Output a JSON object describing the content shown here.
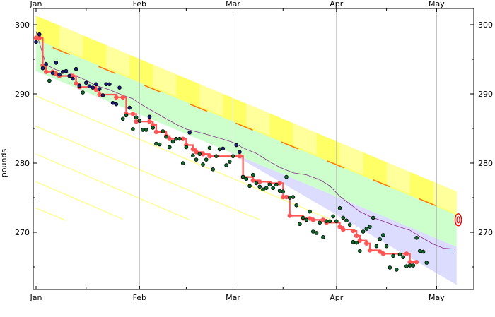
{
  "chart_data": {
    "type": "scatter",
    "ylabel": "pounds",
    "x_ticks": [
      {
        "label": "Jan",
        "day": 0
      },
      {
        "label": "Feb",
        "day": 31
      },
      {
        "label": "Mar",
        "day": 59
      },
      {
        "label": "Apr",
        "day": 90
      },
      {
        "label": "May",
        "day": 120
      }
    ],
    "x_minor_days": [
      15,
      45,
      74,
      105
    ],
    "y_ticks": [
      270,
      280,
      290,
      300
    ],
    "xlim_days": [
      -1,
      127
    ],
    "ylim": [
      262,
      302
    ],
    "grid": "vertical month lines",
    "goal": {
      "day": 126.5,
      "value": 271.8
    },
    "road": {
      "upper": [
        [
          0,
          301.3
        ],
        [
          126,
          275.9
        ]
      ],
      "lower": [
        [
          0,
          293.3
        ],
        [
          126,
          267.9
        ]
      ],
      "centerline": [
        [
          5,
          296.7
        ],
        [
          125,
          272.8
        ]
      ]
    },
    "safe_zone": [
      [
        0,
        297.9
      ],
      [
        126,
        262.4
      ]
    ],
    "guide_lines": [
      {
        "from": [
          0,
          289.7
        ],
        "to": [
          88,
          271.9
        ]
      },
      {
        "from": [
          0,
          285.3
        ],
        "to": [
          67,
          271.8
        ]
      },
      {
        "from": [
          0,
          281.3
        ],
        "to": [
          46,
          271.8
        ]
      },
      {
        "from": [
          0,
          277.3
        ],
        "to": [
          26,
          271.9
        ]
      },
      {
        "from": [
          0,
          273.5
        ],
        "to": [
          9,
          271.7
        ]
      }
    ],
    "moving_average": [
      [
        0,
        299
      ],
      [
        3,
        294.2
      ],
      [
        6,
        293.5
      ],
      [
        10,
        293
      ],
      [
        14,
        292.2
      ],
      [
        18,
        291.2
      ],
      [
        22,
        290.6
      ],
      [
        26,
        289.8
      ],
      [
        29,
        289.3
      ],
      [
        31,
        288.6
      ],
      [
        35,
        287.5
      ],
      [
        39,
        286.4
      ],
      [
        42,
        285.6
      ],
      [
        45,
        284.9
      ],
      [
        50,
        284.3
      ],
      [
        55,
        283.6
      ],
      [
        59,
        283
      ],
      [
        62,
        282.2
      ],
      [
        66,
        281.4
      ],
      [
        70,
        280.2
      ],
      [
        73,
        279.4
      ],
      [
        77,
        278.6
      ],
      [
        81,
        278.3
      ],
      [
        85,
        277.6
      ],
      [
        88,
        276.7
      ],
      [
        91,
        275.2
      ],
      [
        94,
        274.1
      ],
      [
        97,
        273
      ],
      [
        100,
        272.3
      ],
      [
        104,
        271.6
      ],
      [
        108,
        270.9
      ],
      [
        112,
        270.3
      ],
      [
        115,
        269.4
      ],
      [
        119,
        268.3
      ],
      [
        122,
        267.7
      ],
      [
        125,
        267.6
      ]
    ],
    "steps": [
      [
        0,
        298.1
      ],
      [
        1,
        298.1
      ],
      [
        2,
        294.1
      ],
      [
        3,
        293.2
      ],
      [
        5,
        293.2
      ],
      [
        6,
        292.9
      ],
      [
        7,
        292.6
      ],
      [
        11,
        292.6
      ],
      [
        12,
        291.5
      ],
      [
        13,
        291
      ],
      [
        18,
        290.6
      ],
      [
        19,
        289.9
      ],
      [
        24,
        289.5
      ],
      [
        26,
        289.5
      ],
      [
        27,
        287.1
      ],
      [
        29,
        287.1
      ],
      [
        30,
        286
      ],
      [
        34,
        286
      ],
      [
        35,
        285.5
      ],
      [
        36,
        284.5
      ],
      [
        39,
        283.9
      ],
      [
        40,
        283.5
      ],
      [
        44,
        283.5
      ],
      [
        45,
        282.6
      ],
      [
        47,
        282
      ],
      [
        48,
        281.6
      ],
      [
        50,
        281.3
      ],
      [
        52,
        281
      ],
      [
        61,
        281
      ],
      [
        62,
        278
      ],
      [
        65,
        277.5
      ],
      [
        67,
        277.3
      ],
      [
        70,
        277.1
      ],
      [
        73,
        277.1
      ],
      [
        74,
        275.1
      ],
      [
        75,
        275.1
      ],
      [
        76,
        272.4
      ],
      [
        80,
        272
      ],
      [
        82,
        272
      ],
      [
        83,
        271.8
      ],
      [
        86,
        271.8
      ],
      [
        87,
        271.4
      ],
      [
        91,
        270.8
      ],
      [
        92,
        270.4
      ],
      [
        95,
        270.2
      ],
      [
        96,
        269.5
      ],
      [
        97,
        268.8
      ],
      [
        99,
        268.4
      ],
      [
        100,
        267.4
      ],
      [
        103,
        267.2
      ],
      [
        104,
        266.9
      ],
      [
        111,
        266.9
      ],
      [
        112,
        265.7
      ],
      [
        114,
        265.7
      ]
    ],
    "points": [
      [
        0,
        297.5
      ],
      [
        1,
        298.6
      ],
      [
        2,
        293.7
      ],
      [
        3,
        294.3
      ],
      [
        4,
        291.9
      ],
      [
        5,
        293
      ],
      [
        6,
        294.5
      ],
      [
        7,
        292.8
      ],
      [
        8,
        293.2
      ],
      [
        9,
        293.3
      ],
      [
        10,
        292.6
      ],
      [
        11,
        292.2
      ],
      [
        12,
        293.6
      ],
      [
        13,
        291.2
      ],
      [
        14,
        290.2
      ],
      [
        15,
        291.6
      ],
      [
        16,
        291.1
      ],
      [
        17,
        290.9
      ],
      [
        18,
        291.4
      ],
      [
        19,
        290.7
      ],
      [
        20,
        289.8
      ],
      [
        21,
        291.4
      ],
      [
        22,
        291.4
      ],
      [
        23,
        288.7
      ],
      [
        24,
        288.5
      ],
      [
        25,
        290.9
      ],
      [
        26,
        286.4
      ],
      [
        27,
        286.9
      ],
      [
        28,
        288
      ],
      [
        29,
        284.9
      ],
      [
        30,
        286.6
      ],
      [
        31,
        286.1
      ],
      [
        32,
        284.8
      ],
      [
        33,
        284.8
      ],
      [
        34,
        286.7
      ],
      [
        35,
        285.1
      ],
      [
        36,
        282.8
      ],
      [
        37,
        282.7
      ],
      [
        38,
        284.6
      ],
      [
        39,
        283.8
      ],
      [
        40,
        282.3
      ],
      [
        41,
        283.1
      ],
      [
        42,
        283.5
      ],
      [
        43,
        283.5
      ],
      [
        44,
        280
      ],
      [
        45,
        282.3
      ],
      [
        46,
        284.4
      ],
      [
        47,
        281.1
      ],
      [
        48,
        280.5
      ],
      [
        49,
        281.3
      ],
      [
        50,
        279.8
      ],
      [
        51,
        280.5
      ],
      [
        52,
        282.2
      ],
      [
        53,
        279.1
      ],
      [
        54,
        281
      ],
      [
        55,
        282
      ],
      [
        56,
        282.1
      ],
      [
        57,
        279.7
      ],
      [
        58,
        280.2
      ],
      [
        59,
        281
      ],
      [
        60,
        282.6
      ],
      [
        61,
        281.6
      ],
      [
        62,
        278
      ],
      [
        63,
        277.7
      ],
      [
        64,
        276.7
      ],
      [
        65,
        278.3
      ],
      [
        66,
        277.1
      ],
      [
        67,
        276.6
      ],
      [
        68,
        276.2
      ],
      [
        69,
        276.4
      ],
      [
        70,
        276.9
      ],
      [
        71,
        276.4
      ],
      [
        72,
        276.9
      ],
      [
        73,
        276
      ],
      [
        74,
        275.9
      ],
      [
        75,
        278
      ],
      [
        76,
        275
      ],
      [
        77,
        275.1
      ],
      [
        78,
        273.9
      ],
      [
        79,
        271.2
      ],
      [
        80,
        272.1
      ],
      [
        81,
        271.8
      ],
      [
        82,
        273
      ],
      [
        83,
        270.1
      ],
      [
        84,
        269.9
      ],
      [
        85,
        271.4
      ],
      [
        86,
        269.3
      ],
      [
        87,
        271.6
      ],
      [
        88,
        271.6
      ],
      [
        89,
        272.3
      ],
      [
        90,
        271.6
      ],
      [
        91,
        273.5
      ],
      [
        92,
        272.1
      ],
      [
        93,
        271.7
      ],
      [
        94,
        271.1
      ],
      [
        95,
        268.6
      ],
      [
        96,
        268.5
      ],
      [
        97,
        267.3
      ],
      [
        98,
        270.1
      ],
      [
        99,
        270.5
      ],
      [
        100,
        270.8
      ],
      [
        101,
        272.1
      ],
      [
        102,
        268
      ],
      [
        103,
        269
      ],
      [
        104,
        269.6
      ],
      [
        105,
        268
      ],
      [
        106,
        264.9
      ],
      [
        107,
        266.6
      ],
      [
        108,
        264.6
      ],
      [
        109,
        266.8
      ],
      [
        110,
        266.4
      ],
      [
        111,
        265.1
      ],
      [
        112,
        265.2
      ],
      [
        113,
        265.2
      ],
      [
        114,
        269.2
      ],
      [
        115,
        267.3
      ],
      [
        116,
        267.2
      ],
      [
        117,
        265.6
      ]
    ],
    "points_below_road_color": "#0a6b2a",
    "points_on_road_color": "#1a1a80",
    "colors": {
      "road": "#ffff66",
      "road_light": "#ffffaa",
      "safe": "#ccffcc",
      "below": "#dcdcff",
      "steps": "#ff5555",
      "dashes": "#ff7a00",
      "moving_avg": "#8a2a8a",
      "goal": "#ff0000",
      "guides": "#ffff77"
    }
  }
}
